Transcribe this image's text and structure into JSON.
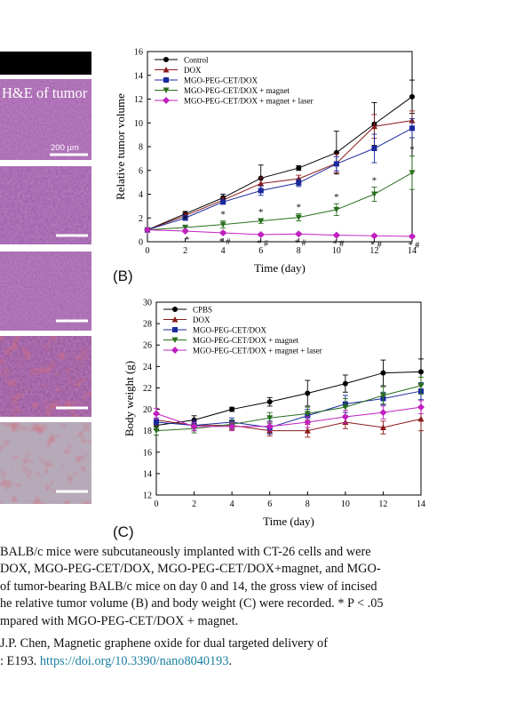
{
  "panelA": {
    "header": "H&E of tumor",
    "scale_label": "200 µm"
  },
  "chartB_label": "(B)",
  "chartC_label": "(C)",
  "chart_data": [
    {
      "type": "line",
      "ylabel": "Relative tumor volume",
      "xlabel": "Time (day)",
      "xlim": [
        0,
        14
      ],
      "ylim": [
        0,
        16
      ],
      "xticks": [
        0,
        2,
        4,
        6,
        8,
        10,
        12,
        14
      ],
      "yticks": [
        0,
        2,
        4,
        6,
        8,
        10,
        12,
        14,
        16
      ],
      "legend_position": "top-left",
      "x": [
        0,
        2,
        4,
        6,
        8,
        10,
        12,
        14
      ],
      "series": [
        {
          "name": "Control",
          "color": "#000000",
          "marker": "circle",
          "values": [
            1.0,
            2.35,
            3.7,
            5.35,
            6.2,
            7.5,
            9.9,
            12.2
          ],
          "errors": [
            0.1,
            0.2,
            0.3,
            1.1,
            0.2,
            1.8,
            1.8,
            1.4
          ]
        },
        {
          "name": "DOX",
          "color": "#8b1a1a",
          "marker": "triangle-up",
          "values": [
            1.0,
            2.2,
            3.5,
            4.9,
            5.3,
            6.6,
            9.7,
            10.2
          ],
          "errors": [
            0.1,
            0.2,
            0.2,
            0.5,
            0.3,
            0.8,
            1.0,
            0.8
          ]
        },
        {
          "name": "MGO-PEG-CET/DOX",
          "color": "#1a2a9c",
          "marker": "square",
          "values": [
            1.0,
            2.0,
            3.35,
            4.3,
            4.95,
            6.55,
            7.85,
            9.55
          ],
          "errors": [
            0.1,
            0.2,
            0.2,
            0.4,
            0.3,
            0.6,
            1.2,
            0.8
          ]
        },
        {
          "name": "MGO-PEG-CET/DOX + magnet",
          "color": "#2a6f1f",
          "marker": "triangle-down",
          "values": [
            1.0,
            1.2,
            1.45,
            1.75,
            2.05,
            2.7,
            4.0,
            5.8
          ],
          "errors": [
            0.1,
            0.2,
            0.3,
            0.2,
            0.3,
            0.5,
            0.6,
            1.4
          ]
        },
        {
          "name": "MGO-PEG-CET/DOX + magnet + laser",
          "color": "#c020c0",
          "marker": "diamond",
          "values": [
            1.0,
            0.9,
            0.75,
            0.6,
            0.65,
            0.55,
            0.5,
            0.45
          ],
          "errors": [
            0.05,
            0.1,
            0.1,
            0.1,
            0.1,
            0.1,
            0.1,
            0.1
          ]
        }
      ],
      "annotations": [
        {
          "x": 2,
          "text": "*"
        },
        {
          "x": 4,
          "text": "*"
        },
        {
          "x": 6,
          "text": "*"
        },
        {
          "x": 8,
          "text": "*"
        },
        {
          "x": 10,
          "text": "*"
        },
        {
          "x": 12,
          "text": "*"
        },
        {
          "x": 14,
          "text": "*"
        },
        {
          "x": 2,
          "text": "*"
        },
        {
          "x": 4,
          "text": "* #"
        },
        {
          "x": 6,
          "text": "* #"
        },
        {
          "x": 8,
          "text": "* #"
        },
        {
          "x": 10,
          "text": "* #"
        },
        {
          "x": 12,
          "text": "* #"
        },
        {
          "x": 14,
          "text": "* #"
        }
      ]
    },
    {
      "type": "line",
      "ylabel": "Body weight (g)",
      "xlabel": "Time (day)",
      "xlim": [
        0,
        14
      ],
      "ylim": [
        12,
        30
      ],
      "xticks": [
        0,
        2,
        4,
        6,
        8,
        10,
        12,
        14
      ],
      "yticks": [
        12,
        14,
        16,
        18,
        20,
        22,
        24,
        26,
        28,
        30
      ],
      "legend_position": "top-left",
      "x": [
        0,
        2,
        4,
        6,
        8,
        10,
        12,
        14
      ],
      "series": [
        {
          "name": "CPBS",
          "color": "#000000",
          "marker": "circle",
          "values": [
            18.5,
            19.0,
            20.0,
            20.7,
            21.5,
            22.4,
            23.4,
            23.5
          ],
          "errors": [
            0.4,
            0.4,
            0.2,
            0.4,
            1.2,
            0.8,
            1.2,
            1.2
          ]
        },
        {
          "name": "DOX",
          "color": "#8b1a1a",
          "marker": "triangle-up",
          "values": [
            19.0,
            18.5,
            18.5,
            18.0,
            18.0,
            18.8,
            18.3,
            19.1
          ],
          "errors": [
            0.5,
            0.5,
            0.4,
            0.5,
            0.6,
            0.6,
            0.6,
            1.1
          ]
        },
        {
          "name": "MGO-PEG-CET/DOX",
          "color": "#1a2a9c",
          "marker": "square",
          "values": [
            18.8,
            18.5,
            18.8,
            18.3,
            19.4,
            20.5,
            21.0,
            21.7
          ],
          "errors": [
            0.4,
            0.5,
            0.4,
            0.6,
            0.6,
            0.8,
            0.6,
            0.8
          ]
        },
        {
          "name": "MGO-PEG-CET/DOX + magnet",
          "color": "#2a6f1f",
          "marker": "triangle-down",
          "values": [
            18.0,
            18.2,
            18.6,
            19.2,
            19.6,
            20.2,
            21.3,
            22.2
          ],
          "errors": [
            0.4,
            0.4,
            0.4,
            0.5,
            0.6,
            0.8,
            0.8,
            0.8
          ]
        },
        {
          "name": "MGO-PEG-CET/DOX + magnet + laser",
          "color": "#c020c0",
          "marker": "diamond",
          "values": [
            19.6,
            18.4,
            18.4,
            18.4,
            18.8,
            19.3,
            19.7,
            20.2
          ],
          "errors": [
            0.5,
            0.4,
            0.4,
            0.4,
            0.5,
            0.6,
            0.6,
            0.6
          ]
        }
      ]
    }
  ],
  "caption": {
    "lines": [
      "BALB/c mice were subcutaneously implanted with CT-26 cells and were",
      "DOX, MGO-PEG-CET/DOX, MGO-PEG-CET/DOX+magnet, and MGO-",
      "of tumor-bearing BALB/c mice on day 0 and 14, the gross view of incised",
      "he relative tumor volume (B) and body weight (C) were recorded. * P < .05",
      "mpared with MGO-PEG-CET/DOX + magnet.",
      "J.P. Chen, Magnetic graphene oxide for dual targeted delivery of",
      ": E193. "
    ],
    "doi_link": "https://doi.org/10.3390/nano8040193",
    "doi_tail": "."
  },
  "colors": {
    "he_pink": "#9a5ca0",
    "he_red": "#a3353a",
    "he_gray": "#8a8094",
    "link": "#1a7fa0"
  }
}
